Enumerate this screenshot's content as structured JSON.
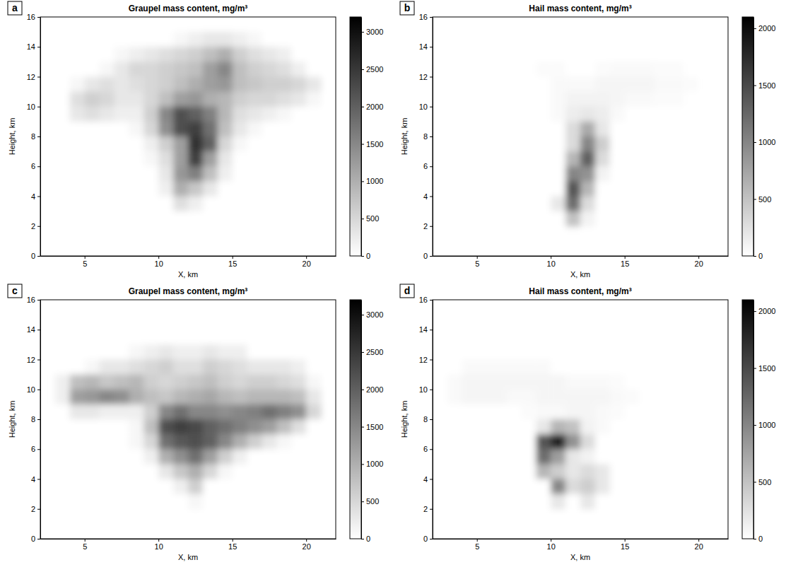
{
  "chart_data": [
    {
      "type": "heatmap",
      "title": "Graupel mass content, mg/m³",
      "x_label": "X, km",
      "y_label": "Height, km",
      "annotation": "a",
      "xlim": [
        2,
        22
      ],
      "xticks": [
        5,
        10,
        15,
        20
      ],
      "ylim": [
        0,
        16
      ],
      "yticks": [
        0,
        2,
        4,
        6,
        8,
        10,
        12,
        14,
        16
      ],
      "x": [
        3.5,
        4.5,
        5.5,
        6.5,
        7.5,
        8.5,
        9.5,
        10.5,
        11.5,
        12.5,
        13.5,
        14.5,
        15.5,
        16.5,
        17.5,
        18.5,
        19.5,
        20.5
      ],
      "y": [
        14.5,
        13.5,
        12.5,
        11.5,
        10.5,
        9.5,
        8.5,
        7.5,
        6.5,
        5.5,
        4.5,
        3.5,
        2.5
      ],
      "z": [
        [
          0,
          0,
          0,
          0,
          0,
          0,
          0,
          0,
          100,
          200,
          300,
          300,
          200,
          100,
          0,
          0,
          0,
          0
        ],
        [
          0,
          0,
          0,
          0,
          100,
          200,
          300,
          400,
          500,
          600,
          800,
          1000,
          600,
          400,
          300,
          200,
          0,
          0
        ],
        [
          0,
          0,
          0,
          100,
          300,
          500,
          500,
          600,
          700,
          800,
          1200,
          1500,
          800,
          600,
          500,
          400,
          200,
          0
        ],
        [
          0,
          100,
          300,
          400,
          300,
          400,
          500,
          600,
          800,
          1000,
          1200,
          1300,
          800,
          700,
          600,
          600,
          500,
          300
        ],
        [
          0,
          400,
          600,
          500,
          300,
          300,
          500,
          800,
          1200,
          1300,
          1000,
          900,
          600,
          500,
          500,
          400,
          300,
          100
        ],
        [
          0,
          300,
          400,
          300,
          200,
          200,
          600,
          1500,
          2200,
          2000,
          1600,
          900,
          400,
          300,
          200,
          100,
          0,
          0
        ],
        [
          0,
          0,
          0,
          0,
          0,
          100,
          500,
          1400,
          2200,
          2400,
          1800,
          800,
          300,
          100,
          0,
          0,
          0,
          0
        ],
        [
          0,
          0,
          0,
          0,
          0,
          0,
          200,
          600,
          1200,
          2600,
          2000,
          500,
          100,
          0,
          0,
          0,
          0,
          0
        ],
        [
          0,
          0,
          0,
          0,
          0,
          0,
          100,
          400,
          1200,
          2400,
          1200,
          300,
          0,
          0,
          0,
          0,
          0,
          0
        ],
        [
          0,
          0,
          0,
          0,
          0,
          0,
          0,
          300,
          1300,
          1600,
          800,
          200,
          0,
          0,
          0,
          0,
          0,
          0
        ],
        [
          0,
          0,
          0,
          0,
          0,
          0,
          0,
          200,
          1000,
          700,
          300,
          0,
          0,
          0,
          0,
          0,
          0,
          0
        ],
        [
          0,
          0,
          0,
          0,
          0,
          0,
          0,
          0,
          400,
          200,
          0,
          0,
          0,
          0,
          0,
          0,
          0,
          0
        ],
        [
          0,
          0,
          0,
          0,
          0,
          0,
          0,
          0,
          0,
          0,
          0,
          0,
          0,
          0,
          0,
          0,
          0,
          0
        ]
      ],
      "colorbar": {
        "range": [
          0,
          3200
        ],
        "ticks": [
          0,
          500,
          1000,
          1500,
          2000,
          2500,
          3000
        ]
      }
    },
    {
      "type": "heatmap",
      "title": "Hail mass content, mg/m³",
      "x_label": "X, km",
      "y_label": "Height, km",
      "annotation": "b",
      "xlim": [
        2,
        22
      ],
      "xticks": [
        5,
        10,
        15,
        20
      ],
      "ylim": [
        0,
        16
      ],
      "yticks": [
        0,
        2,
        4,
        6,
        8,
        10,
        12,
        14,
        16
      ],
      "x": [
        3.5,
        4.5,
        5.5,
        6.5,
        7.5,
        8.5,
        9.5,
        10.5,
        11.5,
        12.5,
        13.5,
        14.5,
        15.5,
        16.5,
        17.5,
        18.5,
        19.5,
        20.5
      ],
      "y": [
        14.5,
        13.5,
        12.5,
        11.5,
        10.5,
        9.5,
        8.5,
        7.5,
        6.5,
        5.5,
        4.5,
        3.5,
        2.5
      ],
      "z": [
        [
          0,
          0,
          0,
          0,
          0,
          0,
          0,
          0,
          0,
          0,
          0,
          0,
          0,
          0,
          0,
          0,
          0,
          0
        ],
        [
          0,
          0,
          0,
          0,
          0,
          0,
          0,
          0,
          0,
          0,
          0,
          0,
          0,
          0,
          0,
          0,
          0,
          0
        ],
        [
          0,
          0,
          0,
          0,
          0,
          0,
          30,
          30,
          0,
          0,
          30,
          50,
          50,
          50,
          30,
          30,
          0,
          0
        ],
        [
          0,
          0,
          0,
          0,
          0,
          0,
          0,
          50,
          50,
          50,
          80,
          80,
          80,
          80,
          50,
          50,
          30,
          0
        ],
        [
          0,
          0,
          0,
          0,
          0,
          0,
          0,
          50,
          100,
          100,
          100,
          80,
          50,
          50,
          30,
          30,
          0,
          0
        ],
        [
          0,
          0,
          0,
          0,
          0,
          0,
          0,
          50,
          150,
          200,
          150,
          50,
          0,
          0,
          0,
          0,
          0,
          0
        ],
        [
          0,
          0,
          0,
          0,
          0,
          0,
          0,
          0,
          300,
          700,
          200,
          0,
          0,
          0,
          0,
          0,
          0,
          0
        ],
        [
          0,
          0,
          0,
          0,
          0,
          0,
          0,
          0,
          300,
          1000,
          400,
          0,
          0,
          0,
          0,
          0,
          0,
          0
        ],
        [
          0,
          0,
          0,
          0,
          0,
          0,
          0,
          0,
          600,
          1300,
          300,
          0,
          0,
          0,
          0,
          0,
          0,
          0
        ],
        [
          0,
          0,
          0,
          0,
          0,
          0,
          0,
          0,
          1000,
          900,
          100,
          0,
          0,
          0,
          0,
          0,
          0,
          0
        ],
        [
          0,
          0,
          0,
          0,
          0,
          0,
          0,
          0,
          1400,
          600,
          0,
          0,
          0,
          0,
          0,
          0,
          0,
          0
        ],
        [
          0,
          0,
          0,
          0,
          0,
          0,
          0,
          200,
          1200,
          300,
          0,
          0,
          0,
          0,
          0,
          0,
          0,
          0
        ],
        [
          0,
          0,
          0,
          0,
          0,
          0,
          0,
          0,
          500,
          100,
          0,
          0,
          0,
          0,
          0,
          0,
          0,
          0
        ]
      ],
      "colorbar": {
        "range": [
          0,
          2100
        ],
        "ticks": [
          0,
          500,
          1000,
          1500,
          2000
        ]
      }
    },
    {
      "type": "heatmap",
      "title": "Graupel mass content, mg/m³",
      "x_label": "X, km",
      "y_label": "Height, km",
      "annotation": "c",
      "xlim": [
        2,
        22
      ],
      "xticks": [
        5,
        10,
        15,
        20
      ],
      "ylim": [
        0,
        16
      ],
      "yticks": [
        0,
        2,
        4,
        6,
        8,
        10,
        12,
        14,
        16
      ],
      "x": [
        3.5,
        4.5,
        5.5,
        6.5,
        7.5,
        8.5,
        9.5,
        10.5,
        11.5,
        12.5,
        13.5,
        14.5,
        15.5,
        16.5,
        17.5,
        18.5,
        19.5,
        20.5
      ],
      "y": [
        14.5,
        13.5,
        12.5,
        11.5,
        10.5,
        9.5,
        8.5,
        7.5,
        6.5,
        5.5,
        4.5,
        3.5,
        2.5
      ],
      "z": [
        [
          0,
          0,
          0,
          0,
          0,
          0,
          0,
          0,
          0,
          0,
          0,
          0,
          0,
          0,
          0,
          0,
          0,
          0
        ],
        [
          0,
          0,
          0,
          0,
          0,
          0,
          0,
          0,
          0,
          0,
          0,
          0,
          0,
          0,
          0,
          0,
          0,
          0
        ],
        [
          0,
          0,
          0,
          0,
          0,
          100,
          200,
          300,
          200,
          200,
          300,
          200,
          200,
          0,
          0,
          0,
          0,
          0
        ],
        [
          0,
          0,
          100,
          300,
          300,
          400,
          500,
          600,
          400,
          400,
          600,
          500,
          400,
          300,
          300,
          300,
          200,
          0
        ],
        [
          200,
          800,
          900,
          700,
          800,
          900,
          600,
          500,
          600,
          700,
          800,
          600,
          500,
          600,
          600,
          500,
          400,
          100
        ],
        [
          200,
          1200,
          1300,
          1500,
          1400,
          1000,
          800,
          700,
          900,
          1000,
          1100,
          900,
          800,
          900,
          900,
          900,
          800,
          300
        ],
        [
          0,
          300,
          300,
          200,
          200,
          200,
          600,
          1500,
          1800,
          1500,
          1500,
          1400,
          1500,
          1600,
          1800,
          1600,
          1400,
          500
        ],
        [
          0,
          0,
          0,
          0,
          0,
          100,
          800,
          2200,
          2400,
          2300,
          2000,
          1800,
          1600,
          1400,
          1200,
          800,
          400,
          0
        ],
        [
          0,
          0,
          0,
          0,
          0,
          100,
          500,
          1800,
          2100,
          2200,
          2000,
          1500,
          1000,
          600,
          300,
          100,
          0,
          0
        ],
        [
          0,
          0,
          0,
          0,
          0,
          0,
          200,
          1000,
          1400,
          1800,
          1200,
          600,
          200,
          0,
          0,
          0,
          0,
          0
        ],
        [
          0,
          0,
          0,
          0,
          0,
          0,
          0,
          300,
          700,
          1000,
          500,
          100,
          0,
          0,
          0,
          0,
          0,
          0
        ],
        [
          0,
          0,
          0,
          0,
          0,
          0,
          0,
          0,
          200,
          600,
          0,
          0,
          0,
          0,
          0,
          0,
          0,
          0
        ],
        [
          0,
          0,
          0,
          0,
          0,
          0,
          0,
          0,
          0,
          100,
          0,
          0,
          0,
          0,
          0,
          0,
          0,
          0
        ]
      ],
      "colorbar": {
        "range": [
          0,
          3200
        ],
        "ticks": [
          0,
          500,
          1000,
          1500,
          2000,
          2500,
          3000
        ]
      }
    },
    {
      "type": "heatmap",
      "title": "Hail mass content, mg/m³",
      "x_label": "X, km",
      "y_label": "Height, km",
      "annotation": "d",
      "xlim": [
        2,
        22
      ],
      "xticks": [
        5,
        10,
        15,
        20
      ],
      "ylim": [
        0,
        16
      ],
      "yticks": [
        0,
        2,
        4,
        6,
        8,
        10,
        12,
        14,
        16
      ],
      "x": [
        3.5,
        4.5,
        5.5,
        6.5,
        7.5,
        8.5,
        9.5,
        10.5,
        11.5,
        12.5,
        13.5,
        14.5,
        15.5,
        16.5,
        17.5,
        18.5,
        19.5,
        20.5
      ],
      "y": [
        14.5,
        13.5,
        12.5,
        11.5,
        10.5,
        9.5,
        8.5,
        7.5,
        6.5,
        5.5,
        4.5,
        3.5,
        2.5
      ],
      "z": [
        [
          0,
          0,
          0,
          0,
          0,
          0,
          0,
          0,
          0,
          0,
          0,
          0,
          0,
          0,
          0,
          0,
          0,
          0
        ],
        [
          0,
          0,
          0,
          0,
          0,
          0,
          0,
          0,
          0,
          0,
          0,
          0,
          0,
          0,
          0,
          0,
          0,
          0
        ],
        [
          0,
          0,
          0,
          0,
          0,
          0,
          0,
          0,
          0,
          0,
          0,
          0,
          0,
          0,
          0,
          0,
          0,
          0
        ],
        [
          0,
          50,
          50,
          50,
          50,
          50,
          50,
          0,
          0,
          0,
          0,
          0,
          0,
          0,
          0,
          0,
          0,
          0
        ],
        [
          50,
          80,
          80,
          80,
          80,
          80,
          80,
          80,
          50,
          50,
          50,
          30,
          0,
          0,
          0,
          0,
          0,
          0
        ],
        [
          50,
          80,
          80,
          80,
          50,
          50,
          80,
          80,
          80,
          80,
          80,
          50,
          30,
          0,
          0,
          0,
          0,
          0
        ],
        [
          0,
          0,
          0,
          0,
          0,
          30,
          50,
          50,
          80,
          80,
          50,
          30,
          0,
          0,
          0,
          0,
          0,
          0
        ],
        [
          0,
          0,
          0,
          0,
          0,
          0,
          200,
          600,
          500,
          100,
          50,
          0,
          0,
          0,
          0,
          0,
          0,
          0
        ],
        [
          0,
          0,
          0,
          0,
          0,
          0,
          1400,
          1800,
          900,
          300,
          0,
          0,
          0,
          0,
          0,
          0,
          0,
          0
        ],
        [
          0,
          0,
          0,
          0,
          0,
          0,
          1200,
          800,
          200,
          100,
          0,
          0,
          0,
          0,
          0,
          0,
          0,
          0
        ],
        [
          0,
          0,
          0,
          0,
          0,
          0,
          600,
          400,
          200,
          300,
          200,
          0,
          0,
          0,
          0,
          0,
          0,
          0
        ],
        [
          0,
          0,
          0,
          0,
          0,
          0,
          0,
          1000,
          300,
          400,
          200,
          0,
          0,
          0,
          0,
          0,
          0,
          0
        ],
        [
          0,
          0,
          0,
          0,
          0,
          0,
          0,
          200,
          0,
          200,
          0,
          0,
          0,
          0,
          0,
          0,
          0,
          0
        ]
      ],
      "colorbar": {
        "range": [
          0,
          2100
        ],
        "ticks": [
          0,
          500,
          1000,
          1500,
          2000
        ]
      }
    }
  ]
}
